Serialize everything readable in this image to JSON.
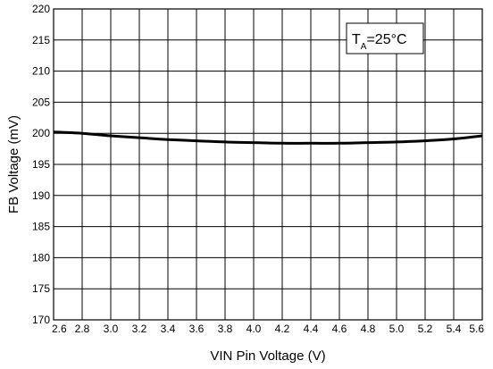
{
  "chart_data": {
    "type": "line",
    "title": "",
    "xlabel": "VIN Pin Voltage (V)",
    "ylabel": "FB Voltage (mV)",
    "xlim": [
      2.6,
      5.6
    ],
    "ylim": [
      170,
      220
    ],
    "x_ticks": [
      "2.6",
      "2.8",
      "3.0",
      "3.2",
      "3.4",
      "3.6",
      "3.8",
      "4.0",
      "4.2",
      "4.4",
      "4.6",
      "4.8",
      "5.0",
      "5.2",
      "5.4",
      "5.6"
    ],
    "y_ticks": [
      "170",
      "175",
      "180",
      "185",
      "190",
      "195",
      "200",
      "205",
      "210",
      "215",
      "220"
    ],
    "grid": true,
    "annotation": {
      "main": "T",
      "subscript": "A",
      "rest": "=25°C"
    },
    "series": [
      {
        "x": [
          2.6,
          2.8,
          3.0,
          3.2,
          3.4,
          3.6,
          3.8,
          4.0,
          4.2,
          4.4,
          4.6,
          4.8,
          5.0,
          5.2,
          5.4,
          5.6
        ],
        "y": [
          200.2,
          200.0,
          199.6,
          199.3,
          199.0,
          198.8,
          198.6,
          198.5,
          198.4,
          198.4,
          198.4,
          198.5,
          198.6,
          198.8,
          199.1,
          199.6
        ]
      }
    ]
  }
}
